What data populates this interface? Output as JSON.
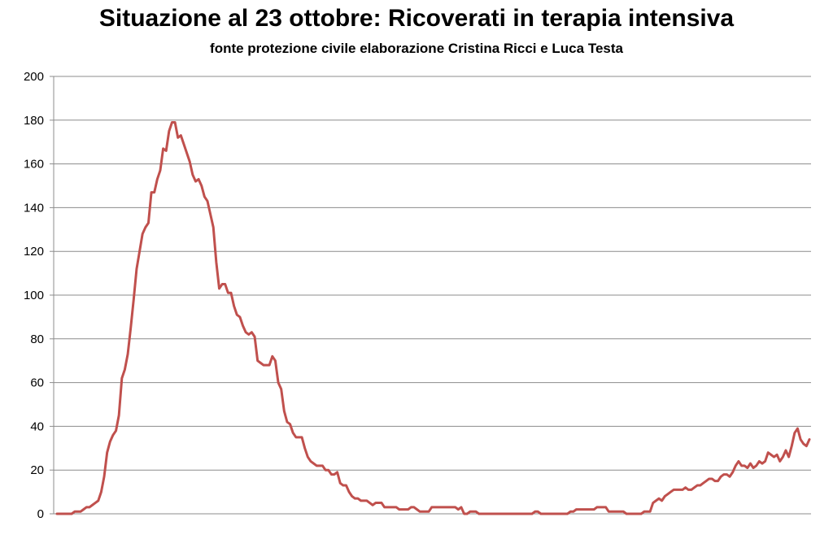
{
  "chart_data": {
    "type": "line",
    "title": "Situazione al 23 ottobre: Ricoverati in terapia intensiva",
    "subtitle": "fonte protezione civile elaborazione Cristina Ricci e Luca Testa",
    "xlabel": "",
    "ylabel": "",
    "ylim": [
      0,
      200
    ],
    "yticks": [
      0,
      20,
      40,
      60,
      80,
      100,
      120,
      140,
      160,
      180,
      200
    ],
    "grid": true,
    "legend": "none",
    "series": [
      {
        "color": "#c0504d",
        "values": [
          0,
          0,
          0,
          0,
          0,
          0,
          1,
          1,
          1,
          2,
          3,
          3,
          4,
          5,
          6,
          10,
          17,
          28,
          33,
          36,
          38,
          45,
          62,
          66,
          73,
          85,
          98,
          112,
          120,
          128,
          131,
          133,
          147,
          147,
          153,
          157,
          167,
          166,
          175,
          179,
          179,
          172,
          173,
          169,
          165,
          161,
          155,
          152,
          153,
          150,
          145,
          143,
          137,
          131,
          115,
          103,
          105,
          105,
          101,
          101,
          95,
          91,
          90,
          86,
          83,
          82,
          83,
          81,
          70,
          69,
          68,
          68,
          68,
          72,
          70,
          60,
          57,
          47,
          42,
          41,
          37,
          35,
          35,
          35,
          30,
          26,
          24,
          23,
          22,
          22,
          22,
          20,
          20,
          18,
          18,
          19,
          14,
          13,
          13,
          10,
          8,
          7,
          7,
          6,
          6,
          6,
          5,
          4,
          5,
          5,
          5,
          3,
          3,
          3,
          3,
          3,
          2,
          2,
          2,
          2,
          3,
          3,
          2,
          1,
          1,
          1,
          1,
          3,
          3,
          3,
          3,
          3,
          3,
          3,
          3,
          3,
          2,
          3,
          0,
          0,
          1,
          1,
          1,
          0,
          0,
          0,
          0,
          0,
          0,
          0,
          0,
          0,
          0,
          0,
          0,
          0,
          0,
          0,
          0,
          0,
          0,
          0,
          1,
          1,
          0,
          0,
          0,
          0,
          0,
          0,
          0,
          0,
          0,
          0,
          1,
          1,
          2,
          2,
          2,
          2,
          2,
          2,
          2,
          3,
          3,
          3,
          3,
          1,
          1,
          1,
          1,
          1,
          1,
          0,
          0,
          0,
          0,
          0,
          0,
          1,
          1,
          1,
          5,
          6,
          7,
          6,
          8,
          9,
          10,
          11,
          11,
          11,
          11,
          12,
          11,
          11,
          12,
          13,
          13,
          14,
          15,
          16,
          16,
          15,
          15,
          17,
          18,
          18,
          17,
          19,
          22,
          24,
          22,
          22,
          21,
          23,
          21,
          22,
          24,
          23,
          24,
          28,
          27,
          26,
          27,
          24,
          26,
          29,
          26,
          31,
          37,
          39,
          34,
          32,
          31,
          34
        ]
      }
    ]
  }
}
